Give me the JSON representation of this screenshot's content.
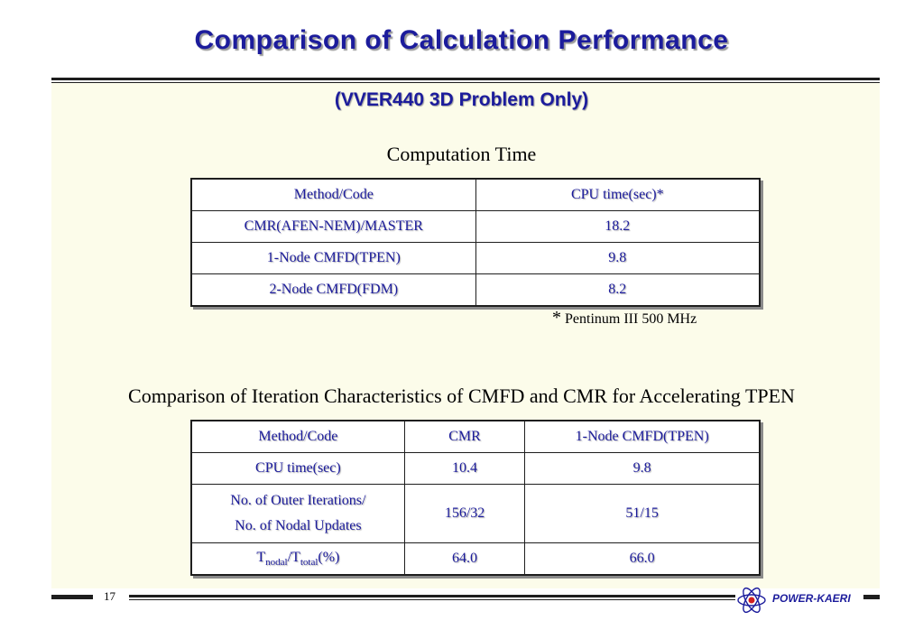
{
  "slide": {
    "title": "Comparison of Calculation Performance",
    "subtitle": "(VVER440 3D Problem Only)",
    "page_number": "17",
    "brand": "POWER-KAERI"
  },
  "table1": {
    "caption": "Computation Time",
    "headers": [
      "Method/Code",
      "CPU time(sec)*"
    ],
    "rows": [
      [
        "CMR(AFEN-NEM)/MASTER",
        "18.2"
      ],
      [
        "1-Node CMFD(TPEN)",
        "9.8"
      ],
      [
        "2-Node CMFD(FDM)",
        "8.2"
      ]
    ],
    "footnote_mark": "*",
    "footnote": "Pentinum III 500 MHz"
  },
  "table2": {
    "caption": "Comparison of Iteration Characteristics of CMFD and CMR for Accelerating TPEN",
    "headers": [
      "Method/Code",
      "CMR",
      "1-Node CMFD(TPEN)"
    ],
    "row_cpu": [
      "CPU time(sec)",
      "10.4",
      "9.8"
    ],
    "row_iter": {
      "label_line1": "No. of Outer Iterations/",
      "label_line2": "No. of Nodal Updates",
      "cmr": "156/32",
      "cmfd": "51/15"
    },
    "row_ratio": {
      "t1": "T",
      "sub1": "nodal",
      "slash": "/T",
      "sub2": "total",
      "suffix": "(%)",
      "cmr": "64.0",
      "cmfd": "66.0"
    }
  },
  "colors": {
    "accent_blue": "#1c1c9c",
    "panel_bg": "#fcfcea",
    "rule": "#1e1e1e"
  },
  "icons": {
    "logo": "atom-logo-icon"
  }
}
